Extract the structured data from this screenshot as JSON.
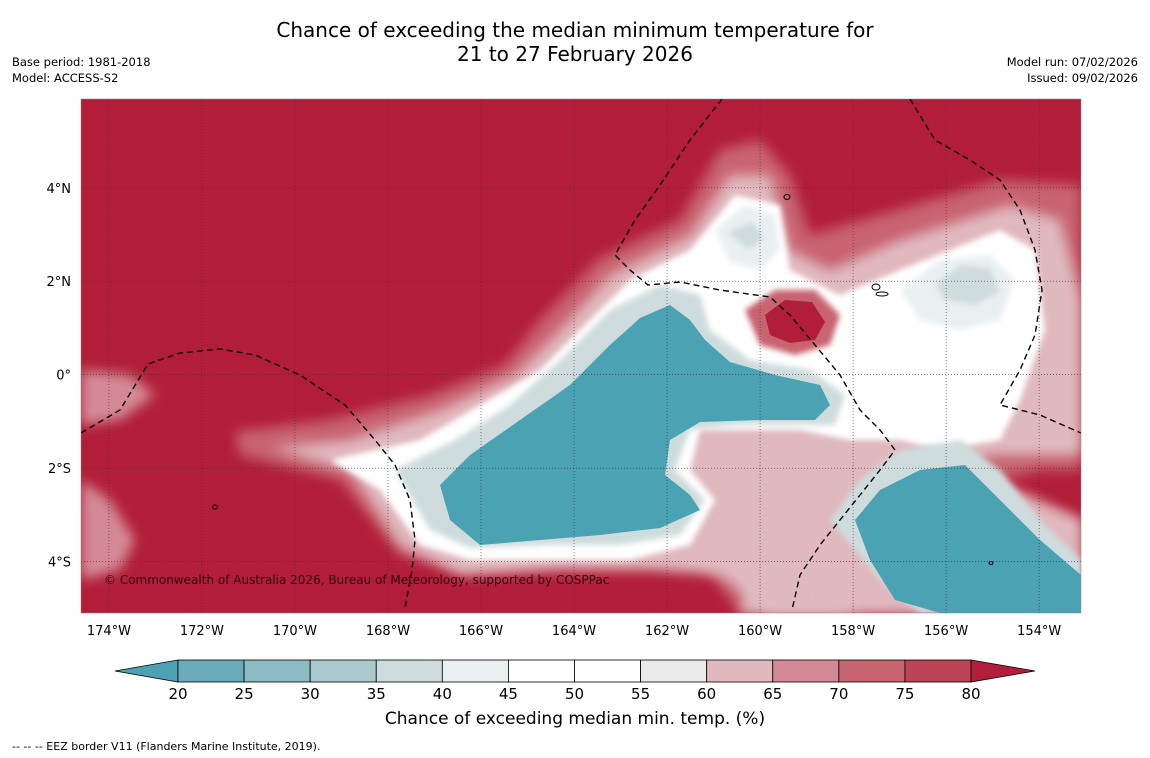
{
  "title": {
    "line1": "Chance of exceeding the median minimum temperature for",
    "line2": "21 to 27 February 2026"
  },
  "meta_left": {
    "base_period": "Base period: 1981-2018",
    "model": "Model: ACCESS-S2"
  },
  "meta_right": {
    "model_run": "Model run: 07/02/2026",
    "issued": "Issued: 09/02/2026"
  },
  "copyright": "© Commonwealth of Australia 2026, Bureau of Meteorology, supported by COSPPac",
  "axes": {
    "lon_range": [
      -174.6,
      -153.1
    ],
    "lat_range": [
      -5.1,
      5.9
    ],
    "x_ticks": [
      {
        "value": -174,
        "label": "174°W"
      },
      {
        "value": -172,
        "label": "172°W"
      },
      {
        "value": -170,
        "label": "170°W"
      },
      {
        "value": -168,
        "label": "168°W"
      },
      {
        "value": -166,
        "label": "166°W"
      },
      {
        "value": -164,
        "label": "164°W"
      },
      {
        "value": -162,
        "label": "162°W"
      },
      {
        "value": -160,
        "label": "160°W"
      },
      {
        "value": -158,
        "label": "158°W"
      },
      {
        "value": -156,
        "label": "156°W"
      },
      {
        "value": -154,
        "label": "154°W"
      }
    ],
    "y_ticks": [
      {
        "value": 4,
        "label": "4°N"
      },
      {
        "value": 2,
        "label": "2°N"
      },
      {
        "value": 0,
        "label": "0°"
      },
      {
        "value": -2,
        "label": "2°S"
      },
      {
        "value": -4,
        "label": "4°S"
      }
    ]
  },
  "colorbar": {
    "title": "Chance of exceeding median min. temp. (%)",
    "levels": [
      "20",
      "25",
      "30",
      "35",
      "40",
      "45",
      "50",
      "55",
      "60",
      "65",
      "70",
      "75",
      "80"
    ],
    "colors": [
      "#6aaab9",
      "#8bbcc6",
      "#aac9cd",
      "#cfdcdd",
      "#eaf0f1",
      "#ffffff",
      "#ffffff",
      "#ecebec",
      "#e0b9bf",
      "#d48a96",
      "#c8646f",
      "#bd4457"
    ],
    "low_color": "#4aa2b3",
    "high_color": "#b21e39"
  },
  "regions": {
    "cool_color": "#4aa2b3",
    "warm_color": "#b21e39"
  },
  "footnote": "--  --  -- EEZ border V11 (Flanders Marine Institute, 2019)."
}
